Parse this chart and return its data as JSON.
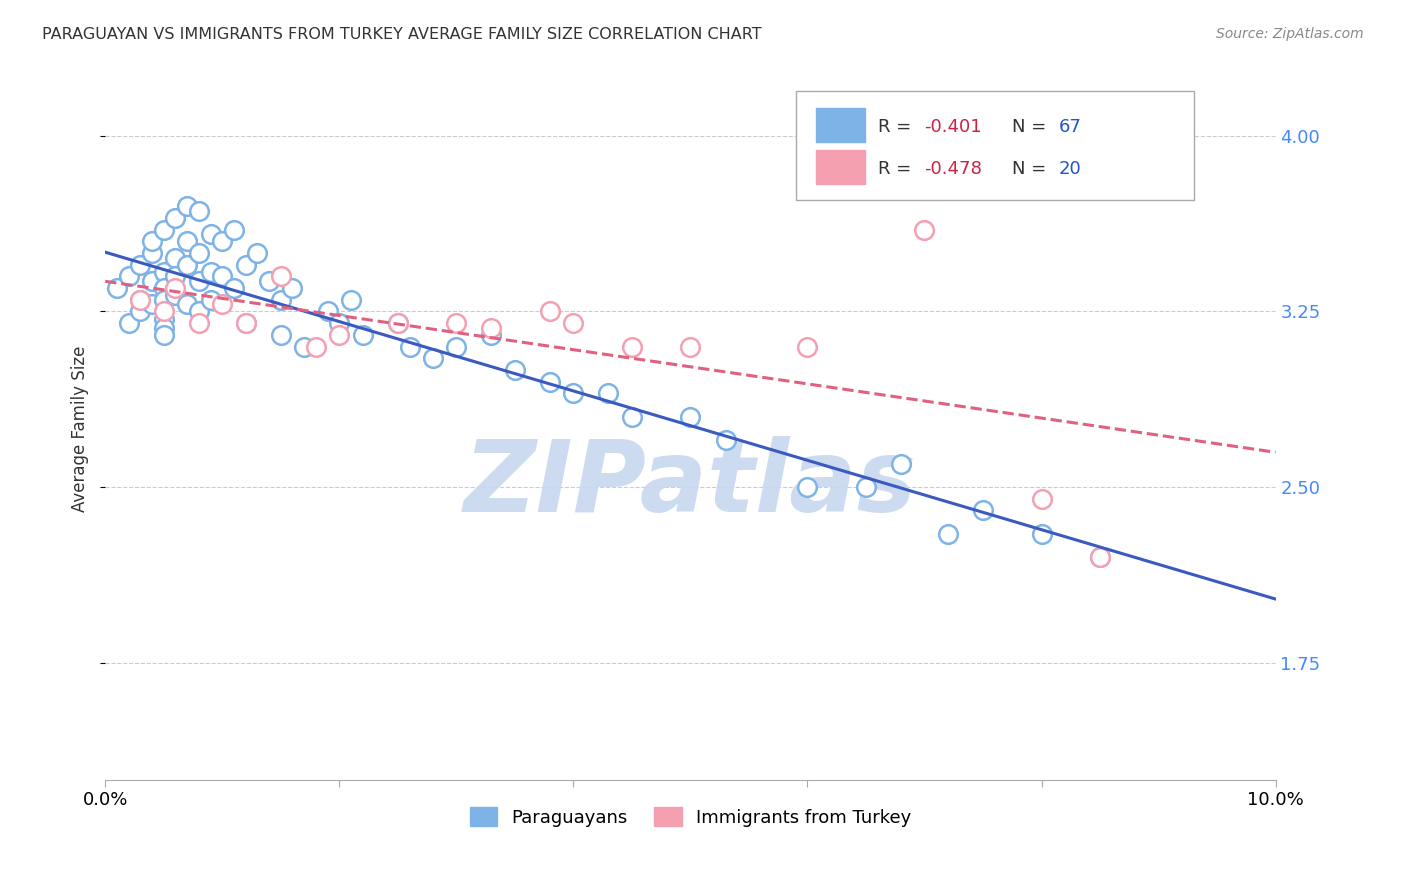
{
  "title": "PARAGUAYAN VS IMMIGRANTS FROM TURKEY AVERAGE FAMILY SIZE CORRELATION CHART",
  "source": "Source: ZipAtlas.com",
  "ylabel": "Average Family Size",
  "xlim": [
    0.0,
    0.1
  ],
  "ylim": [
    1.25,
    4.25
  ],
  "yticks": [
    1.75,
    2.5,
    3.25,
    4.0
  ],
  "xticks": [
    0.0,
    0.02,
    0.04,
    0.06,
    0.08,
    0.1
  ],
  "xticklabels": [
    "0.0%",
    "",
    "",
    "",
    "",
    "10.0%"
  ],
  "background_color": "#ffffff",
  "watermark": "ZIPatlas",
  "watermark_color": "#c8d8f0",
  "blue_color": "#7eb3e8",
  "pink_color": "#f4a0b0",
  "blue_line_color": "#3a5abf",
  "pink_line_color": "#e06080",
  "right_axis_color": "#4488ff",
  "paraguayan_x": [
    0.001,
    0.002,
    0.002,
    0.003,
    0.003,
    0.003,
    0.004,
    0.004,
    0.004,
    0.004,
    0.005,
    0.005,
    0.005,
    0.005,
    0.005,
    0.005,
    0.005,
    0.006,
    0.006,
    0.006,
    0.006,
    0.007,
    0.007,
    0.007,
    0.007,
    0.008,
    0.008,
    0.008,
    0.008,
    0.009,
    0.009,
    0.009,
    0.01,
    0.01,
    0.011,
    0.011,
    0.012,
    0.012,
    0.013,
    0.014,
    0.015,
    0.015,
    0.016,
    0.017,
    0.019,
    0.02,
    0.021,
    0.022,
    0.025,
    0.026,
    0.028,
    0.03,
    0.033,
    0.035,
    0.038,
    0.04,
    0.043,
    0.045,
    0.05,
    0.053,
    0.06,
    0.065,
    0.068,
    0.072,
    0.075,
    0.08,
    0.085
  ],
  "paraguayan_y": [
    3.35,
    3.4,
    3.2,
    3.45,
    3.3,
    3.25,
    3.5,
    3.55,
    3.38,
    3.28,
    3.6,
    3.42,
    3.35,
    3.3,
    3.22,
    3.18,
    3.15,
    3.65,
    3.48,
    3.4,
    3.32,
    3.7,
    3.55,
    3.45,
    3.28,
    3.68,
    3.5,
    3.38,
    3.25,
    3.58,
    3.42,
    3.3,
    3.55,
    3.4,
    3.6,
    3.35,
    3.45,
    3.2,
    3.5,
    3.38,
    3.3,
    3.15,
    3.35,
    3.1,
    3.25,
    3.2,
    3.3,
    3.15,
    3.2,
    3.1,
    3.05,
    3.1,
    3.15,
    3.0,
    2.95,
    2.9,
    2.9,
    2.8,
    2.8,
    2.7,
    2.5,
    2.5,
    2.6,
    2.3,
    2.4,
    2.3,
    2.2
  ],
  "turkey_x": [
    0.003,
    0.005,
    0.006,
    0.008,
    0.01,
    0.012,
    0.015,
    0.018,
    0.02,
    0.025,
    0.03,
    0.033,
    0.038,
    0.04,
    0.045,
    0.05,
    0.06,
    0.07,
    0.08,
    0.085
  ],
  "turkey_y": [
    3.3,
    3.25,
    3.35,
    3.2,
    3.28,
    3.2,
    3.4,
    3.1,
    3.15,
    3.2,
    3.2,
    3.18,
    3.25,
    3.2,
    3.1,
    3.1,
    3.1,
    3.6,
    2.45,
    2.2
  ]
}
